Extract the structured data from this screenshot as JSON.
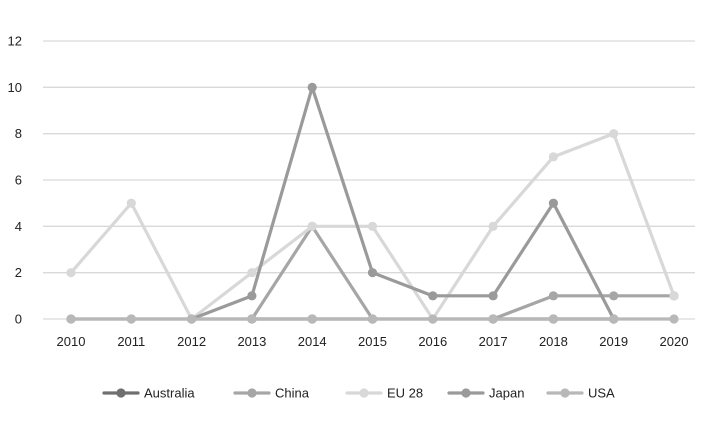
{
  "chart_data": {
    "type": "line",
    "title": "",
    "xlabel": "",
    "ylabel": "",
    "x": [
      "2010",
      "2011",
      "2012",
      "2013",
      "2014",
      "2015",
      "2016",
      "2017",
      "2018",
      "2019",
      "2020"
    ],
    "ylim": [
      0,
      12
    ],
    "yticks": [
      0,
      2,
      4,
      6,
      8,
      10,
      12
    ],
    "grid": "horizontal",
    "legend_position": "bottom",
    "series": [
      {
        "name": "Australia",
        "color": "#6f6f6f",
        "values": [
          null,
          null,
          null,
          0,
          0,
          0,
          null,
          0,
          0,
          0,
          null
        ]
      },
      {
        "name": "China",
        "color": "#a6a6a6",
        "values": [
          0,
          0,
          0,
          0,
          4,
          0,
          0,
          0,
          1,
          1,
          1
        ]
      },
      {
        "name": "EU 28",
        "color": "#d8d8d8",
        "values": [
          2,
          5,
          0,
          2,
          4,
          4,
          0,
          4,
          7,
          8,
          1
        ]
      },
      {
        "name": "Japan",
        "color": "#9a9a9a",
        "values": [
          null,
          null,
          0,
          1,
          10,
          2,
          1,
          1,
          5,
          0,
          null
        ]
      },
      {
        "name": "USA",
        "color": "#b8b8b8",
        "values": [
          0,
          0,
          0,
          0,
          0,
          0,
          0,
          0,
          0,
          0,
          0
        ]
      }
    ]
  }
}
